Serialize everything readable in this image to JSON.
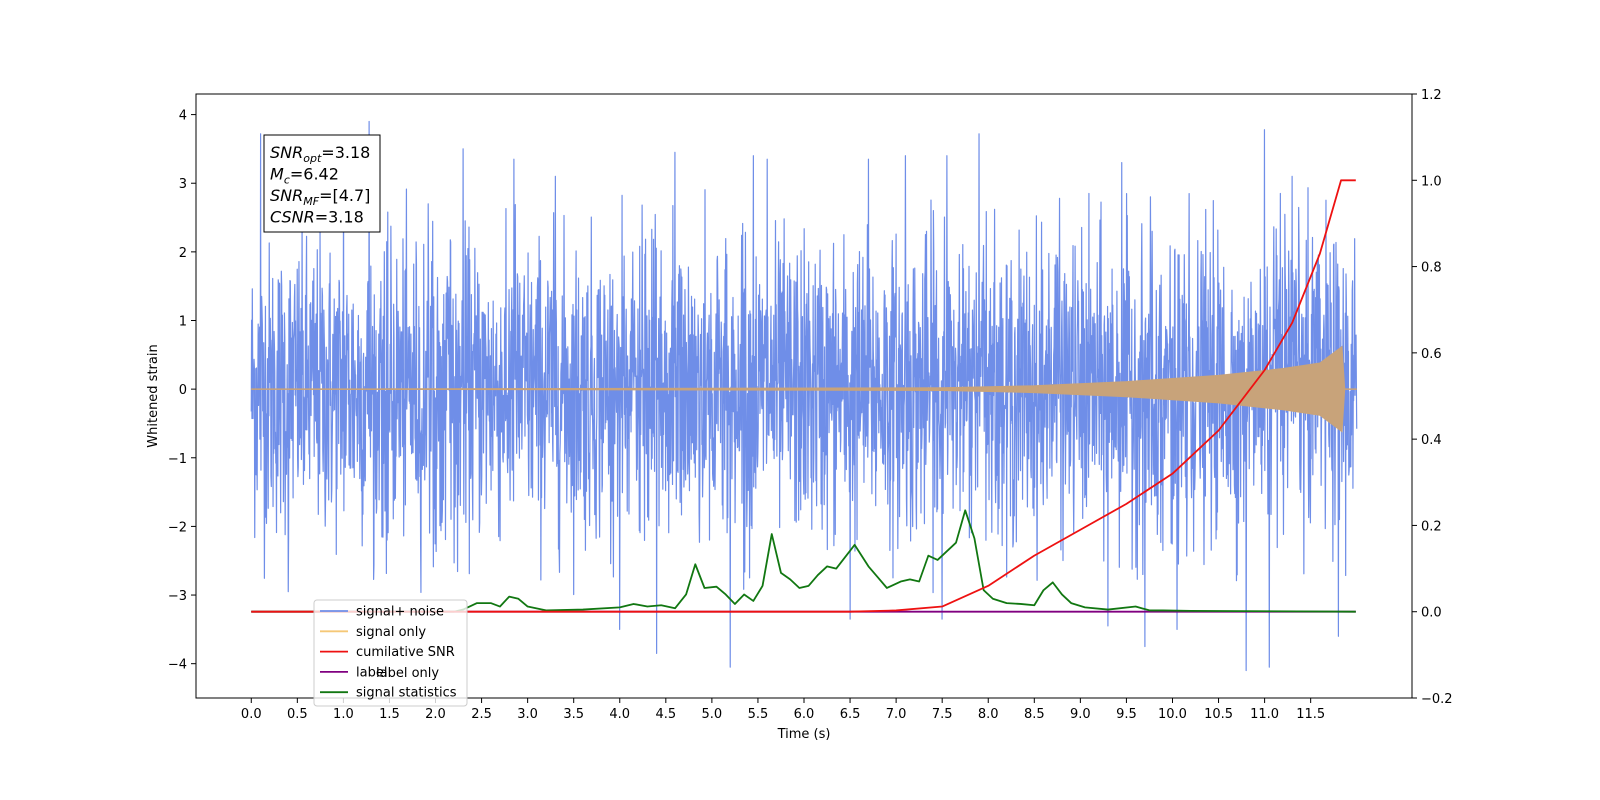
{
  "chart_data": {
    "type": "line",
    "xlabel": "Time (s)",
    "ylabel": "Whitened strain",
    "xlim": [
      -0.6,
      12.6
    ],
    "ylim": [
      -4.5,
      4.3
    ],
    "y2lim": [
      -0.2,
      1.2
    ],
    "xticks": [
      "0.0",
      "0.5",
      "1.0",
      "1.5",
      "2.0",
      "2.5",
      "3.0",
      "3.5",
      "4.0",
      "4.5",
      "5.0",
      "5.5",
      "6.0",
      "6.5",
      "7.0",
      "7.5",
      "8.0",
      "8.5",
      "9.0",
      "9.5",
      "10.0",
      "10.5",
      "11.0",
      "11.5"
    ],
    "xtick_values": [
      0.0,
      0.5,
      1.0,
      1.5,
      2.0,
      2.5,
      3.0,
      3.5,
      4.0,
      4.5,
      5.0,
      5.5,
      6.0,
      6.5,
      7.0,
      7.5,
      8.0,
      8.5,
      9.0,
      9.5,
      10.0,
      10.5,
      11.0,
      11.5
    ],
    "yticks": [
      "−4",
      "−3",
      "−2",
      "−1",
      "0",
      "1",
      "2",
      "3",
      "4"
    ],
    "ytick_values": [
      -4,
      -3,
      -2,
      -1,
      0,
      1,
      2,
      3,
      4
    ],
    "y2ticks": [
      "−0.2",
      "0.0",
      "0.2",
      "0.4",
      "0.6",
      "0.8",
      "1.0",
      "1.2"
    ],
    "y2tick_values": [
      -0.2,
      0.0,
      0.2,
      0.4,
      0.6,
      0.8,
      1.0,
      1.2
    ],
    "grid": false,
    "legend_position": "lower-left",
    "legend": [
      {
        "label": "signal+ noise",
        "color": "#6f8ee8"
      },
      {
        "label": "signal only",
        "color": "#f5c877"
      },
      {
        "label": "cumilative SNR",
        "color": "#ee1111"
      },
      {
        "label": "label",
        "color": "#800080"
      },
      {
        "label": "signal statistics",
        "color": "#117711"
      }
    ],
    "legend_hidden_text": "label only",
    "annotation": {
      "snr_opt": {
        "main": "SNR",
        "sub": "opt",
        "value": "=3.18"
      },
      "mc": {
        "main": "M",
        "sub": "c",
        "value": "=6.42"
      },
      "snr_mf": {
        "main": "SNR",
        "sub": "MF",
        "value": "=[4.7]"
      },
      "csnr": {
        "main": "CSNR",
        "value": "=3.18"
      }
    },
    "series": [
      {
        "name": "signal+ noise",
        "axis": "left",
        "color": "#6f8ee8",
        "noise_x_range": [
          0.0,
          12.0
        ],
        "noise_envelope": [
          -3.0,
          3.0
        ],
        "peaks": [
          [
            0.1,
            3.72
          ],
          [
            1.28,
            3.9
          ],
          [
            1.0,
            3.2
          ],
          [
            2.3,
            3.5
          ],
          [
            2.85,
            3.35
          ],
          [
            3.3,
            3.1
          ],
          [
            4.6,
            3.45
          ],
          [
            5.45,
            3.4
          ],
          [
            5.6,
            3.35
          ],
          [
            6.7,
            3.35
          ],
          [
            7.1,
            3.4
          ],
          [
            7.55,
            3.4
          ],
          [
            7.9,
            3.72
          ],
          [
            9.45,
            3.3
          ],
          [
            11.0,
            3.78
          ],
          [
            11.3,
            3.1
          ],
          [
            11.8,
            3.5
          ],
          [
            5.2,
            -4.05
          ],
          [
            4.4,
            -3.85
          ],
          [
            4.0,
            -3.5
          ],
          [
            6.5,
            -3.35
          ],
          [
            7.5,
            -3.35
          ],
          [
            9.3,
            -3.45
          ],
          [
            9.7,
            -3.75
          ],
          [
            10.05,
            -3.5
          ],
          [
            10.8,
            -4.1
          ],
          [
            11.05,
            -4.05
          ],
          [
            11.8,
            -3.6
          ],
          [
            0.4,
            -2.95
          ]
        ]
      },
      {
        "name": "signal only",
        "axis": "left",
        "color": "#c8a37a",
        "envelope": [
          [
            0.0,
            0.0
          ],
          [
            7.5,
            0.02
          ],
          [
            8.5,
            0.05
          ],
          [
            9.5,
            0.11
          ],
          [
            10.5,
            0.2
          ],
          [
            11.2,
            0.3
          ],
          [
            11.6,
            0.38
          ],
          [
            11.84,
            0.62
          ],
          [
            11.87,
            0.0
          ],
          [
            12.0,
            0.0
          ]
        ]
      },
      {
        "name": "cumilative SNR",
        "axis": "right",
        "color": "#ee1111",
        "points": [
          [
            0.0,
            0.0
          ],
          [
            6.5,
            0.0
          ],
          [
            7.0,
            0.003
          ],
          [
            7.5,
            0.012
          ],
          [
            8.0,
            0.06
          ],
          [
            8.5,
            0.13
          ],
          [
            9.0,
            0.19
          ],
          [
            9.5,
            0.25
          ],
          [
            10.0,
            0.32
          ],
          [
            10.5,
            0.42
          ],
          [
            11.0,
            0.56
          ],
          [
            11.3,
            0.67
          ],
          [
            11.6,
            0.83
          ],
          [
            11.83,
            1.0
          ],
          [
            11.99,
            1.0
          ]
        ]
      },
      {
        "name": "label",
        "axis": "right",
        "color": "#800080",
        "points": [
          [
            0.0,
            0.0
          ],
          [
            11.99,
            0.0
          ]
        ]
      },
      {
        "name": "signal statistics",
        "axis": "right",
        "color": "#117711",
        "points": [
          [
            0.0,
            0.0
          ],
          [
            2.2,
            0.0
          ],
          [
            2.3,
            0.005
          ],
          [
            2.45,
            0.02
          ],
          [
            2.6,
            0.02
          ],
          [
            2.7,
            0.012
          ],
          [
            2.8,
            0.035
          ],
          [
            2.9,
            0.03
          ],
          [
            3.0,
            0.012
          ],
          [
            3.2,
            0.003
          ],
          [
            3.6,
            0.005
          ],
          [
            4.0,
            0.01
          ],
          [
            4.15,
            0.018
          ],
          [
            4.3,
            0.012
          ],
          [
            4.45,
            0.015
          ],
          [
            4.6,
            0.008
          ],
          [
            4.72,
            0.04
          ],
          [
            4.82,
            0.11
          ],
          [
            4.92,
            0.055
          ],
          [
            5.05,
            0.058
          ],
          [
            5.15,
            0.04
          ],
          [
            5.25,
            0.018
          ],
          [
            5.35,
            0.04
          ],
          [
            5.45,
            0.025
          ],
          [
            5.55,
            0.06
          ],
          [
            5.65,
            0.18
          ],
          [
            5.75,
            0.09
          ],
          [
            5.85,
            0.075
          ],
          [
            5.95,
            0.055
          ],
          [
            6.05,
            0.06
          ],
          [
            6.15,
            0.085
          ],
          [
            6.25,
            0.105
          ],
          [
            6.35,
            0.1
          ],
          [
            6.55,
            0.155
          ],
          [
            6.7,
            0.105
          ],
          [
            6.8,
            0.08
          ],
          [
            6.9,
            0.055
          ],
          [
            7.05,
            0.07
          ],
          [
            7.15,
            0.075
          ],
          [
            7.25,
            0.07
          ],
          [
            7.35,
            0.13
          ],
          [
            7.45,
            0.12
          ],
          [
            7.55,
            0.14
          ],
          [
            7.65,
            0.16
          ],
          [
            7.75,
            0.235
          ],
          [
            7.85,
            0.17
          ],
          [
            7.95,
            0.05
          ],
          [
            8.05,
            0.03
          ],
          [
            8.2,
            0.02
          ],
          [
            8.35,
            0.018
          ],
          [
            8.5,
            0.015
          ],
          [
            8.6,
            0.05
          ],
          [
            8.7,
            0.068
          ],
          [
            8.8,
            0.04
          ],
          [
            8.9,
            0.02
          ],
          [
            9.05,
            0.01
          ],
          [
            9.3,
            0.005
          ],
          [
            9.6,
            0.012
          ],
          [
            9.75,
            0.003
          ],
          [
            9.9,
            0.003
          ],
          [
            10.2,
            0.002
          ],
          [
            11.99,
            0.0
          ]
        ]
      }
    ]
  }
}
